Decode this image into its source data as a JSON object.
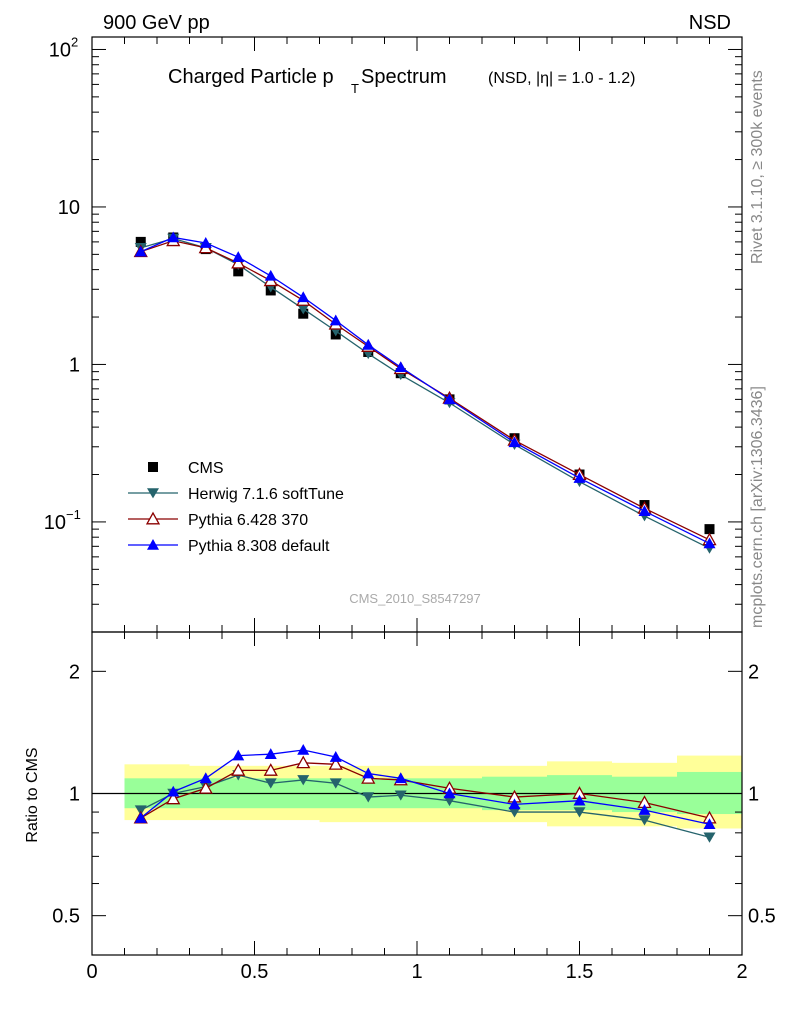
{
  "header": {
    "energy": "900 GeV pp",
    "process": "NSD"
  },
  "side": {
    "rivet": "Rivet 3.1.10, ≥ 300k events",
    "mcplots": "mcplots.cern.ch [arXiv:1306.3436]"
  },
  "colors": {
    "cms": "#000000",
    "herwig": "#25636c",
    "py6": "#8b0000",
    "py8": "#0000ff",
    "band_outer": "#ffff99",
    "band_inner": "#99ff99"
  },
  "chart_data": [
    {
      "type": "scatter",
      "title": "Charged Particle p",
      "title_sub": "T",
      "title_rest": " Spectrum",
      "subtitle": "(NSD, |η| = 1.0 - 1.2)",
      "analysis": "CMS_2010_S8547297",
      "yscale": "log",
      "ylim": [
        0.02,
        120
      ],
      "xlim": [
        0,
        2
      ],
      "ytick_labels": [
        {
          "v": 100,
          "base": "10",
          "exp": "2"
        },
        {
          "v": 10,
          "base": "10",
          "exp": ""
        },
        {
          "v": 1,
          "base": "1",
          "exp": ""
        },
        {
          "v": 0.1,
          "base": "10",
          "exp": "−1"
        }
      ],
      "x": [
        0.15,
        0.25,
        0.35,
        0.45,
        0.55,
        0.65,
        0.75,
        0.85,
        0.95,
        1.1,
        1.3,
        1.5,
        1.7,
        1.9
      ],
      "series": [
        {
          "name": "CMS",
          "marker": "square",
          "values": [
            6.0,
            6.4,
            5.4,
            3.9,
            2.95,
            2.1,
            1.55,
            1.2,
            0.88,
            0.6,
            0.34,
            0.2,
            0.128,
            0.09
          ]
        },
        {
          "name": "Herwig 7.1.6 softTune",
          "marker": "triangle-down",
          "values": [
            5.5,
            6.3,
            5.5,
            4.3,
            3.1,
            2.25,
            1.63,
            1.17,
            0.86,
            0.57,
            0.31,
            0.18,
            0.109,
            0.068
          ]
        },
        {
          "name": "Pythia 6.428 370",
          "marker": "triangle-up-open",
          "values": [
            5.2,
            6.1,
            5.5,
            4.4,
            3.4,
            2.55,
            1.8,
            1.3,
            0.94,
            0.61,
            0.33,
            0.2,
            0.122,
            0.077
          ]
        },
        {
          "name": "Pythia 8.308 default",
          "marker": "triangle-up",
          "values": [
            5.2,
            6.4,
            5.9,
            4.8,
            3.65,
            2.67,
            1.9,
            1.33,
            0.96,
            0.6,
            0.32,
            0.19,
            0.117,
            0.073
          ]
        }
      ]
    },
    {
      "type": "line",
      "ylabel": "Ratio to CMS",
      "yscale": "log",
      "ylim": [
        0.4,
        2.5
      ],
      "xlim": [
        0,
        2
      ],
      "ytick_labels": [
        {
          "v": 0.5,
          "label": "0.5"
        },
        {
          "v": 1,
          "label": "1"
        },
        {
          "v": 2,
          "label": "2"
        }
      ],
      "xtick_labels": [
        {
          "v": 0,
          "label": "0"
        },
        {
          "v": 0.5,
          "label": "0.5"
        },
        {
          "v": 1,
          "label": "1"
        },
        {
          "v": 1.5,
          "label": "1.5"
        },
        {
          "v": 2,
          "label": "2"
        }
      ],
      "bins": [
        [
          0.1,
          0.2
        ],
        [
          0.2,
          0.3
        ],
        [
          0.3,
          0.4
        ],
        [
          0.4,
          0.5
        ],
        [
          0.5,
          0.6
        ],
        [
          0.6,
          0.7
        ],
        [
          0.7,
          0.8
        ],
        [
          0.8,
          0.9
        ],
        [
          0.9,
          1.0
        ],
        [
          1.0,
          1.2
        ],
        [
          1.2,
          1.4
        ],
        [
          1.4,
          1.6
        ],
        [
          1.6,
          1.8
        ],
        [
          1.8,
          2.0
        ]
      ],
      "band_outer": [
        [
          0.86,
          1.18
        ],
        [
          0.86,
          1.18
        ],
        [
          0.86,
          1.17
        ],
        [
          0.86,
          1.17
        ],
        [
          0.86,
          1.17
        ],
        [
          0.86,
          1.17
        ],
        [
          0.85,
          1.17
        ],
        [
          0.85,
          1.17
        ],
        [
          0.85,
          1.17
        ],
        [
          0.85,
          1.17
        ],
        [
          0.85,
          1.17
        ],
        [
          0.83,
          1.2
        ],
        [
          0.83,
          1.19
        ],
        [
          0.82,
          1.24
        ]
      ],
      "band_inner": [
        [
          0.92,
          1.09
        ],
        [
          0.92,
          1.09
        ],
        [
          0.92,
          1.09
        ],
        [
          0.92,
          1.09
        ],
        [
          0.92,
          1.09
        ],
        [
          0.92,
          1.09
        ],
        [
          0.92,
          1.09
        ],
        [
          0.92,
          1.09
        ],
        [
          0.92,
          1.09
        ],
        [
          0.92,
          1.09
        ],
        [
          0.91,
          1.1
        ],
        [
          0.91,
          1.11
        ],
        [
          0.9,
          1.1
        ],
        [
          0.89,
          1.13
        ]
      ],
      "x": [
        0.15,
        0.25,
        0.35,
        0.45,
        0.55,
        0.65,
        0.75,
        0.85,
        0.95,
        1.1,
        1.3,
        1.5,
        1.7,
        1.9
      ],
      "series": [
        {
          "name": "Herwig 7.1.6 softTune",
          "marker": "triangle-down",
          "values": [
            0.91,
            1.0,
            1.04,
            1.11,
            1.06,
            1.08,
            1.06,
            0.98,
            0.99,
            0.96,
            0.9,
            0.9,
            0.86,
            0.78
          ]
        },
        {
          "name": "Pythia 6.428 370",
          "marker": "triangle-up-open",
          "values": [
            0.87,
            0.97,
            1.03,
            1.14,
            1.14,
            1.19,
            1.18,
            1.09,
            1.08,
            1.03,
            0.98,
            1.0,
            0.95,
            0.87
          ]
        },
        {
          "name": "Pythia 8.308 default",
          "marker": "triangle-up",
          "values": [
            0.87,
            1.01,
            1.09,
            1.24,
            1.25,
            1.28,
            1.23,
            1.12,
            1.09,
            1.0,
            0.94,
            0.96,
            0.91,
            0.84
          ]
        }
      ]
    }
  ]
}
